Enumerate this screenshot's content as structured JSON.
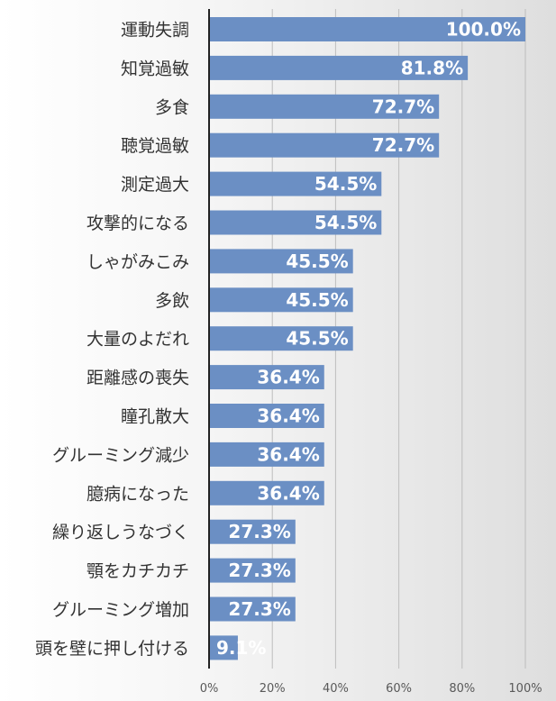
{
  "chart_data": {
    "type": "bar",
    "orientation": "horizontal",
    "categories": [
      "運動失調",
      "知覚過敏",
      "多食",
      "聴覚過敏",
      "測定過大",
      "攻撃的になる",
      "しゃがみこみ",
      "多飲",
      "大量のよだれ",
      "距離感の喪失",
      "瞳孔散大",
      "グルーミング減少",
      "臆病になった",
      "繰り返しうなづく",
      "顎をカチカチ",
      "グルーミング増加",
      "頭を壁に押し付ける"
    ],
    "values": [
      100.0,
      81.8,
      72.7,
      72.7,
      54.5,
      54.5,
      45.5,
      45.5,
      45.5,
      36.4,
      36.4,
      36.4,
      36.4,
      27.3,
      27.3,
      27.3,
      9.1
    ],
    "value_labels": [
      "100.0%",
      "81.8%",
      "72.7%",
      "72.7%",
      "54.5%",
      "54.5%",
      "45.5%",
      "45.5%",
      "45.5%",
      "36.4%",
      "36.4%",
      "36.4%",
      "36.4%",
      "27.3%",
      "27.3%",
      "27.3%",
      "9.1%"
    ],
    "xticks": [
      "0%",
      "20%",
      "40%",
      "60%",
      "80%",
      "100%"
    ],
    "xlim": [
      0,
      100
    ],
    "grid": true,
    "title": "",
    "xlabel": "",
    "ylabel": "",
    "bar_color": "#6b8fc4"
  }
}
